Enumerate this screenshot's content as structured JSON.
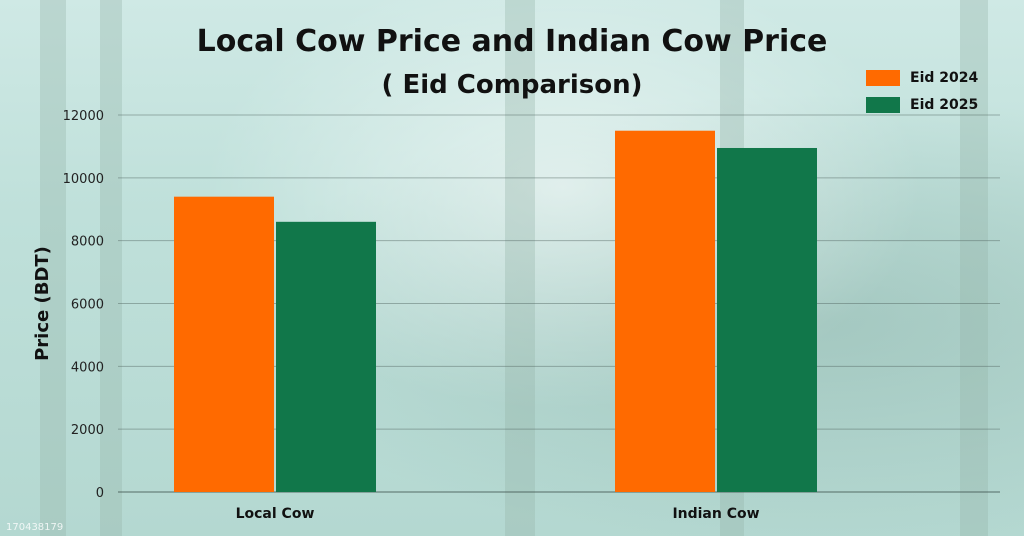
{
  "watermark": "170438179",
  "chart_data": {
    "type": "bar",
    "title": "Local Cow Price and Indian Cow Price",
    "subtitle": "( Eid Comparison)",
    "xlabel": "",
    "ylabel": "Price (BDT)",
    "categories": [
      "Local Cow",
      "Indian Cow"
    ],
    "series": [
      {
        "name": "Eid 2024",
        "color": "#ff6a00",
        "values": [
          9400,
          11500
        ]
      },
      {
        "name": "Eid 2025",
        "color": "#11774a",
        "values": [
          8600,
          10950
        ]
      }
    ],
    "ylim": [
      0,
      12000
    ],
    "yticks": [
      "0",
      "2000",
      "4000",
      "6000",
      "8000",
      "10000",
      "12000"
    ],
    "grid": true,
    "legend_position": "top-right"
  }
}
